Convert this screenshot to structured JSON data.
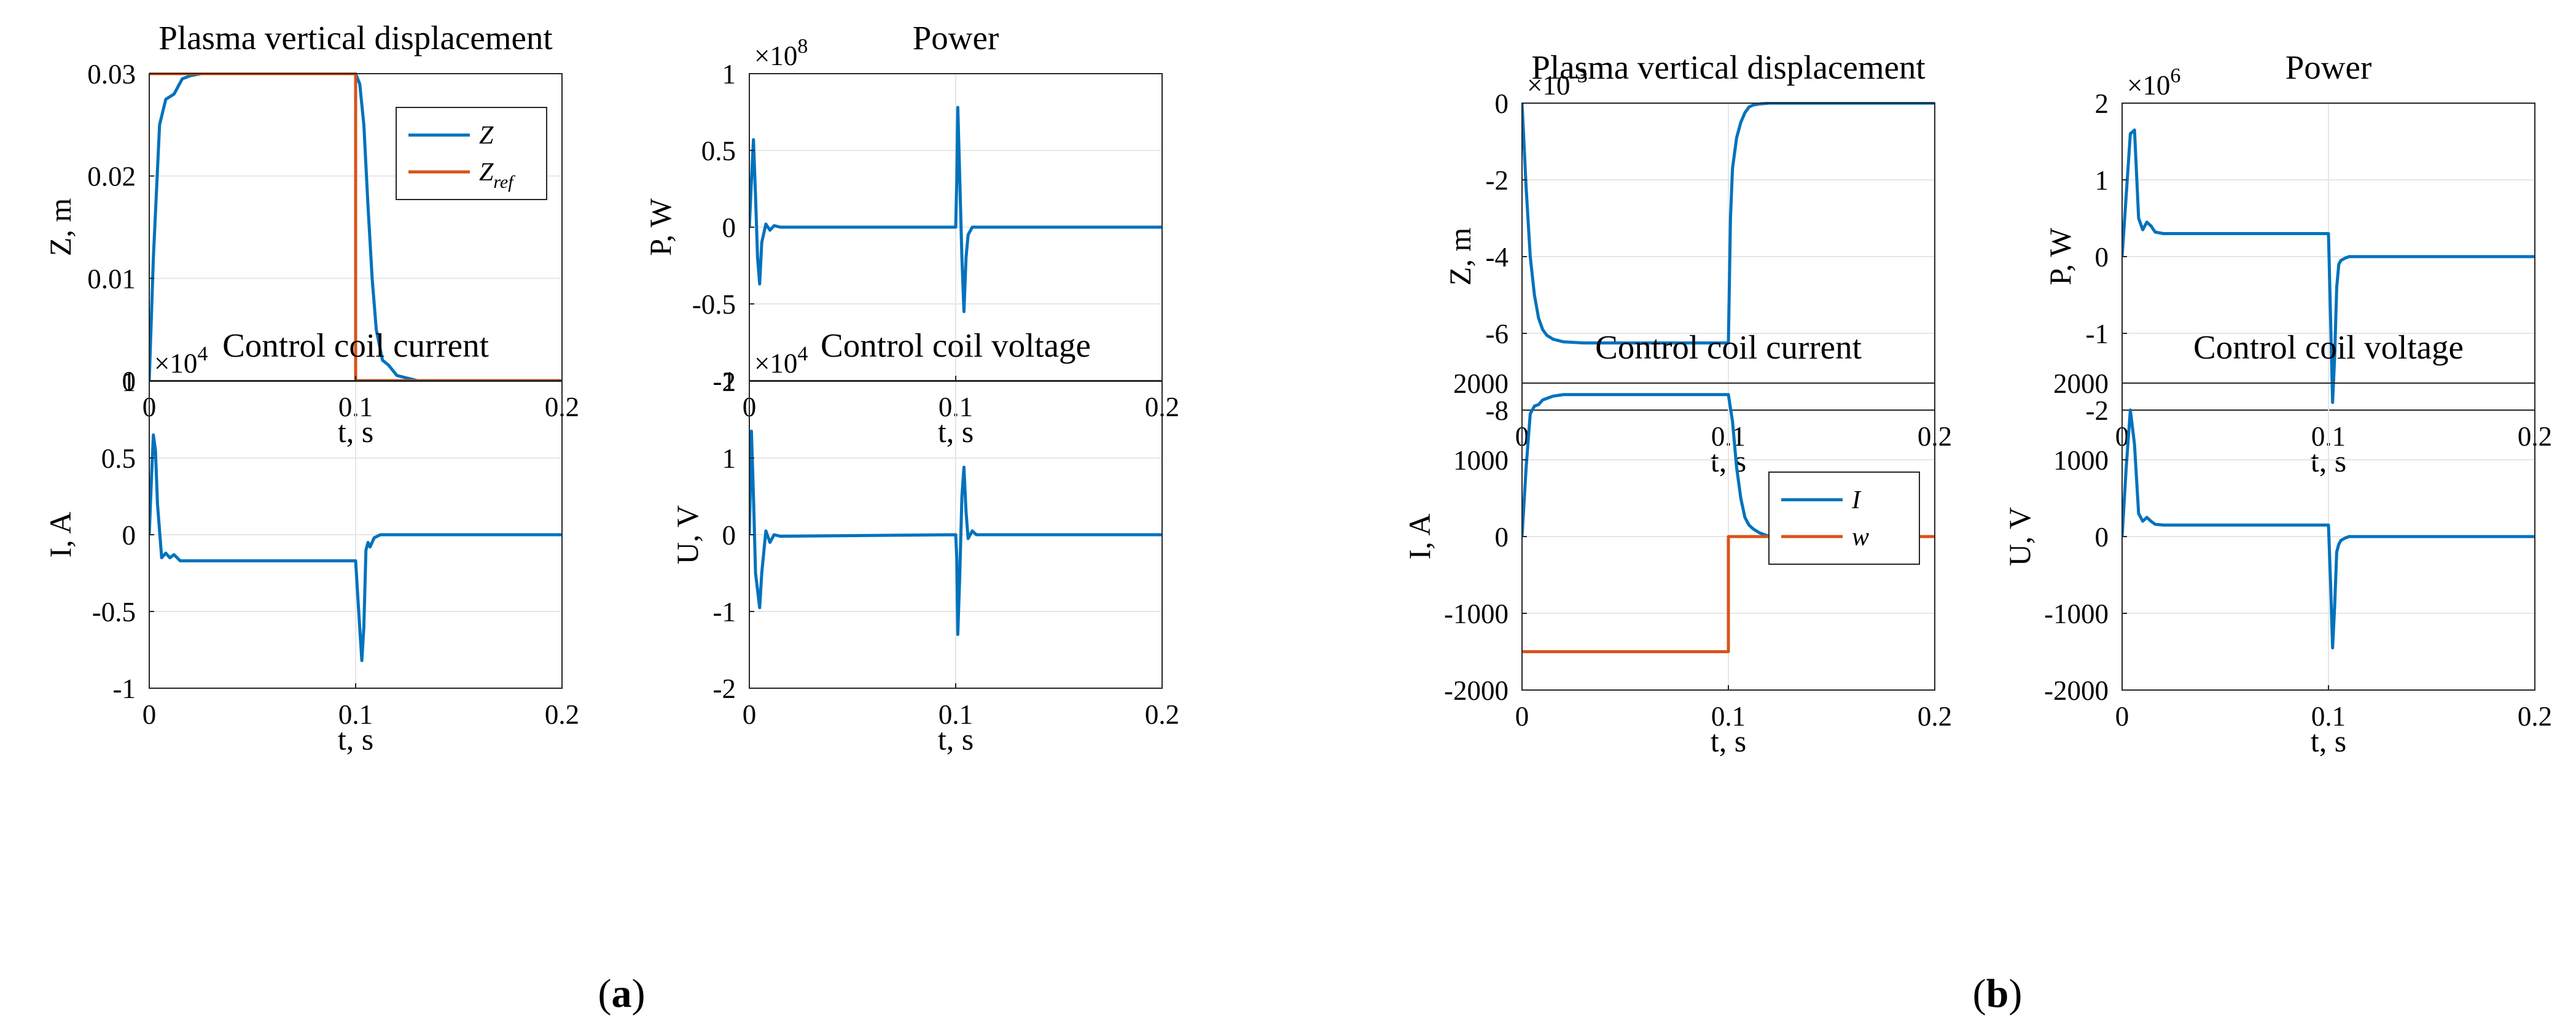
{
  "captions": [
    {
      "open": "(",
      "letter": "a",
      "close": ")"
    },
    {
      "open": "(",
      "letter": "b",
      "close": ")"
    }
  ],
  "colors": {
    "series1": "#0072BD",
    "series2": "#D95319",
    "grid": "#e6e6e6",
    "axis": "#262626"
  },
  "chart_data": [
    {
      "id": "a1",
      "type": "line",
      "title": "Plasma vertical displacement",
      "xlabel": "t, s",
      "ylabel": "Z, m",
      "xlim": [
        0,
        0.2
      ],
      "ylim": [
        0,
        0.03
      ],
      "xticks": [
        0,
        0.1,
        0.2
      ],
      "xticklabels": [
        "0",
        "0.1",
        "0.2"
      ],
      "yticks": [
        0,
        0.01,
        0.02,
        0.03
      ],
      "yticklabels": [
        "0",
        "0.01",
        "0.02",
        "0.03"
      ],
      "multiplier": null,
      "legend": {
        "position": "top-right",
        "entries": [
          {
            "text": "Z",
            "sub": ""
          },
          {
            "text": "Z",
            "sub": "ref"
          }
        ]
      },
      "series": [
        {
          "name": "Z",
          "color": "#0072BD",
          "x": [
            0,
            0.002,
            0.005,
            0.008,
            0.012,
            0.016,
            0.02,
            0.025,
            0.03,
            0.1,
            0.102,
            0.104,
            0.106,
            0.108,
            0.11,
            0.113,
            0.116,
            0.12,
            0.13,
            0.2
          ],
          "y": [
            0,
            0.012,
            0.025,
            0.0275,
            0.028,
            0.0295,
            0.0298,
            0.03,
            0.03,
            0.03,
            0.029,
            0.025,
            0.017,
            0.01,
            0.005,
            0.002,
            0.0015,
            0.0005,
            0,
            0
          ]
        },
        {
          "name": "Z_ref",
          "color": "#D95319",
          "x": [
            0,
            0.1,
            0.1,
            0.2
          ],
          "y": [
            0.03,
            0.03,
            0,
            0
          ]
        }
      ]
    },
    {
      "id": "a2",
      "type": "line",
      "title": "Power",
      "xlabel": "t, s",
      "ylabel": "P, W",
      "xlim": [
        0,
        0.2
      ],
      "ylim": [
        -1,
        1
      ],
      "xticks": [
        0,
        0.1,
        0.2
      ],
      "xticklabels": [
        "0",
        "0.1",
        "0.2"
      ],
      "yticks": [
        -1,
        -0.5,
        0,
        0.5,
        1
      ],
      "yticklabels": [
        "-1",
        "-0.5",
        "0",
        "0.5",
        "1"
      ],
      "multiplier": {
        "base": "×10",
        "exp": "8"
      },
      "legend": null,
      "series": [
        {
          "name": "P",
          "color": "#0072BD",
          "x": [
            0,
            0.001,
            0.002,
            0.003,
            0.004,
            0.005,
            0.006,
            0.008,
            0.01,
            0.012,
            0.015,
            0.1,
            0.1005,
            0.101,
            0.102,
            0.103,
            0.104,
            0.105,
            0.106,
            0.108,
            0.11,
            0.2
          ],
          "y": [
            0,
            0.3,
            0.57,
            0.2,
            -0.2,
            -0.37,
            -0.1,
            0.02,
            -0.02,
            0.01,
            0,
            0,
            0.3,
            0.78,
            0.3,
            -0.2,
            -0.55,
            -0.2,
            -0.05,
            0,
            0,
            0
          ]
        }
      ]
    },
    {
      "id": "a3",
      "type": "line",
      "title": "Control coil current",
      "xlabel": "t, s",
      "ylabel": "I, A",
      "xlim": [
        0,
        0.2
      ],
      "ylim": [
        -1,
        1
      ],
      "xticks": [
        0,
        0.1,
        0.2
      ],
      "xticklabels": [
        "0",
        "0.1",
        "0.2"
      ],
      "yticks": [
        -1,
        -0.5,
        0,
        0.5,
        1
      ],
      "yticklabels": [
        "-1",
        "-0.5",
        "0",
        "0.5",
        "1"
      ],
      "multiplier": {
        "base": "×10",
        "exp": "4"
      },
      "legend": null,
      "series": [
        {
          "name": "I",
          "color": "#0072BD",
          "x": [
            0,
            0.001,
            0.002,
            0.003,
            0.004,
            0.006,
            0.008,
            0.01,
            0.012,
            0.015,
            0.02,
            0.1,
            0.1015,
            0.103,
            0.104,
            0.105,
            0.106,
            0.107,
            0.109,
            0.112,
            0.115,
            0.2
          ],
          "y": [
            0,
            0.35,
            0.65,
            0.55,
            0.2,
            -0.15,
            -0.12,
            -0.15,
            -0.13,
            -0.17,
            -0.17,
            -0.17,
            -0.5,
            -0.82,
            -0.6,
            -0.1,
            -0.05,
            -0.08,
            -0.02,
            0,
            0,
            0
          ]
        }
      ]
    },
    {
      "id": "a4",
      "type": "line",
      "title": "Control coil voltage",
      "xlabel": "t, s",
      "ylabel": "U, V",
      "xlim": [
        0,
        0.2
      ],
      "ylim": [
        -2,
        2
      ],
      "xticks": [
        0,
        0.1,
        0.2
      ],
      "xticklabels": [
        "0",
        "0.1",
        "0.2"
      ],
      "yticks": [
        -2,
        -1,
        0,
        1,
        2
      ],
      "yticklabels": [
        "-2",
        "-1",
        "0",
        "1",
        "2"
      ],
      "multiplier": {
        "base": "×10",
        "exp": "4"
      },
      "legend": null,
      "series": [
        {
          "name": "U",
          "color": "#0072BD",
          "x": [
            0,
            0.001,
            0.002,
            0.003,
            0.005,
            0.006,
            0.008,
            0.01,
            0.012,
            0.015,
            0.1,
            0.1005,
            0.101,
            0.102,
            0.103,
            0.104,
            0.105,
            0.106,
            0.108,
            0.11,
            0.113,
            0.2
          ],
          "y": [
            0,
            1.35,
            0.5,
            -0.5,
            -0.95,
            -0.5,
            0.05,
            -0.1,
            0,
            -0.02,
            0,
            -0.3,
            -1.3,
            -0.5,
            0.5,
            0.88,
            0.3,
            -0.05,
            0.05,
            0,
            0,
            0
          ]
        }
      ]
    },
    {
      "id": "b1",
      "type": "line",
      "title": "Plasma vertical displacement",
      "xlabel": "t, s",
      "ylabel": "Z, m",
      "xlim": [
        0,
        0.2
      ],
      "ylim": [
        -8,
        0
      ],
      "xticks": [
        0,
        0.1,
        0.2
      ],
      "xticklabels": [
        "0",
        "0.1",
        "0.2"
      ],
      "yticks": [
        -8,
        -6,
        -4,
        -2,
        0
      ],
      "yticklabels": [
        "-8",
        "-6",
        "-4",
        "-2",
        "0"
      ],
      "multiplier": {
        "base": "×10",
        "exp": "-3"
      },
      "legend": null,
      "series": [
        {
          "name": "Z",
          "color": "#0072BD",
          "x": [
            0,
            0.002,
            0.004,
            0.006,
            0.008,
            0.01,
            0.012,
            0.015,
            0.02,
            0.03,
            0.1,
            0.101,
            0.102,
            0.104,
            0.106,
            0.108,
            0.11,
            0.112,
            0.115,
            0.12,
            0.2
          ],
          "y": [
            0,
            -2.2,
            -4,
            -5,
            -5.6,
            -5.9,
            -6.05,
            -6.15,
            -6.22,
            -6.25,
            -6.25,
            -3,
            -1.7,
            -0.9,
            -0.5,
            -0.25,
            -0.1,
            -0.05,
            -0.02,
            0,
            0
          ]
        }
      ]
    },
    {
      "id": "b2",
      "type": "line",
      "title": "Power",
      "xlabel": "t, s",
      "ylabel": "P, W",
      "xlim": [
        0,
        0.2
      ],
      "ylim": [
        -2,
        2
      ],
      "xticks": [
        0,
        0.1,
        0.2
      ],
      "xticklabels": [
        "0",
        "0.1",
        "0.2"
      ],
      "yticks": [
        -2,
        -1,
        0,
        1,
        2
      ],
      "yticklabels": [
        "-2",
        "-1",
        "0",
        "1",
        "2"
      ],
      "multiplier": {
        "base": "×10",
        "exp": "6"
      },
      "legend": null,
      "series": [
        {
          "name": "P",
          "color": "#0072BD",
          "x": [
            0,
            0.002,
            0.004,
            0.006,
            0.008,
            0.01,
            0.012,
            0.014,
            0.016,
            0.02,
            0.1,
            0.101,
            0.102,
            0.103,
            0.104,
            0.105,
            0.106,
            0.108,
            0.11,
            0.2
          ],
          "y": [
            0,
            0.8,
            1.6,
            1.65,
            0.5,
            0.35,
            0.45,
            0.4,
            0.32,
            0.3,
            0.3,
            -0.8,
            -1.9,
            -1.3,
            -0.4,
            -0.1,
            -0.05,
            -0.02,
            0,
            0
          ]
        }
      ]
    },
    {
      "id": "b3",
      "type": "line",
      "title": "Control coil current",
      "xlabel": "t, s",
      "ylabel": "I, A",
      "xlim": [
        0,
        0.2
      ],
      "ylim": [
        -2000,
        2000
      ],
      "xticks": [
        0,
        0.1,
        0.2
      ],
      "xticklabels": [
        "0",
        "0.1",
        "0.2"
      ],
      "yticks": [
        -2000,
        -1000,
        0,
        1000,
        2000
      ],
      "yticklabels": [
        "-2000",
        "-1000",
        "0",
        "1000",
        "2000"
      ],
      "multiplier": null,
      "legend": {
        "position": "center-right",
        "entries": [
          {
            "text": "I",
            "sub": ""
          },
          {
            "text": "w",
            "sub": ""
          }
        ]
      },
      "series": [
        {
          "name": "I",
          "color": "#0072BD",
          "x": [
            0,
            0.002,
            0.004,
            0.006,
            0.008,
            0.01,
            0.012,
            0.015,
            0.02,
            0.03,
            0.1,
            0.102,
            0.104,
            0.106,
            0.108,
            0.11,
            0.112,
            0.115,
            0.12,
            0.2
          ],
          "y": [
            0,
            900,
            1600,
            1700,
            1720,
            1780,
            1800,
            1830,
            1850,
            1850,
            1850,
            1500,
            900,
            500,
            250,
            150,
            100,
            50,
            0,
            0
          ]
        },
        {
          "name": "w",
          "color": "#D95319",
          "x": [
            0,
            0.1,
            0.1,
            0.2
          ],
          "y": [
            -1500,
            -1500,
            0,
            0
          ]
        }
      ]
    },
    {
      "id": "b4",
      "type": "line",
      "title": "Control coil voltage",
      "xlabel": "t, s",
      "ylabel": "U, V",
      "xlim": [
        0,
        0.2
      ],
      "ylim": [
        -2000,
        2000
      ],
      "xticks": [
        0,
        0.1,
        0.2
      ],
      "xticklabels": [
        "0",
        "0.1",
        "0.2"
      ],
      "yticks": [
        -2000,
        -1000,
        0,
        1000,
        2000
      ],
      "yticklabels": [
        "-2000",
        "-1000",
        "0",
        "1000",
        "2000"
      ],
      "multiplier": null,
      "legend": null,
      "series": [
        {
          "name": "U",
          "color": "#0072BD",
          "x": [
            0,
            0.002,
            0.004,
            0.006,
            0.008,
            0.01,
            0.012,
            0.014,
            0.016,
            0.02,
            0.1,
            0.101,
            0.102,
            0.103,
            0.104,
            0.105,
            0.106,
            0.108,
            0.11,
            0.2
          ],
          "y": [
            0,
            900,
            1650,
            1200,
            300,
            200,
            250,
            200,
            160,
            150,
            150,
            -600,
            -1450,
            -900,
            -200,
            -100,
            -50,
            -20,
            0,
            0
          ]
        }
      ]
    }
  ]
}
